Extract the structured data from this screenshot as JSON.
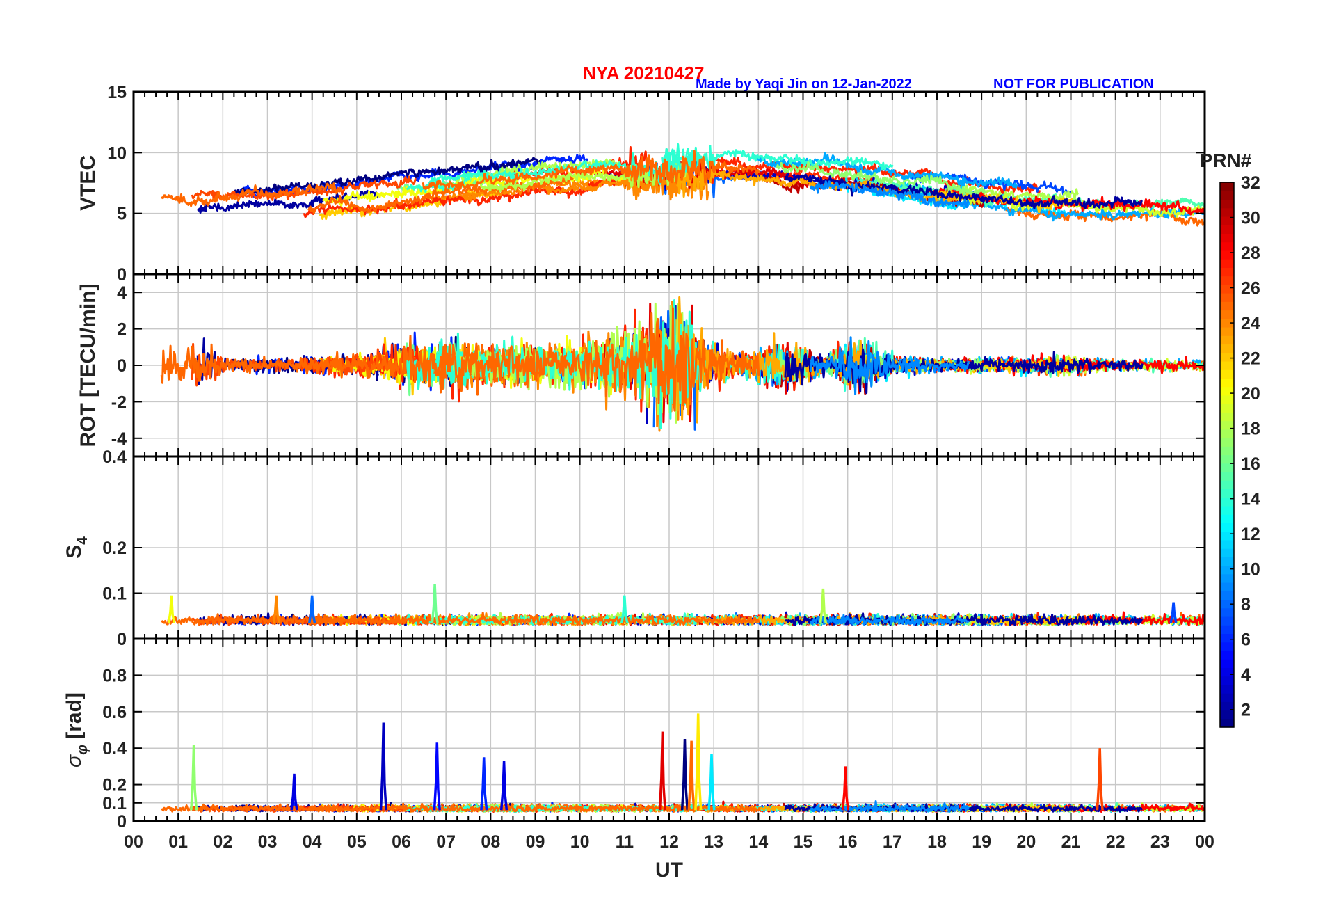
{
  "header": {
    "title": "NYA   20210427",
    "credit": "Made by Yaqi Jin on 12-Jan-2022",
    "note": "NOT FOR PUBLICATION"
  },
  "colors": {
    "title": "#ff0000",
    "credit": "#0000ff",
    "axes": "#000000",
    "grid": "#c8c8c8"
  },
  "chart_data": {
    "type": "line",
    "x_axis": {
      "label": "UT",
      "range": [
        0,
        24
      ],
      "ticks": [
        0,
        1,
        2,
        3,
        4,
        5,
        6,
        7,
        8,
        9,
        10,
        11,
        12,
        13,
        14,
        15,
        16,
        17,
        18,
        19,
        20,
        21,
        22,
        23,
        24
      ],
      "tick_labels": [
        "00",
        "01",
        "02",
        "03",
        "04",
        "05",
        "06",
        "07",
        "08",
        "09",
        "10",
        "11",
        "12",
        "13",
        "14",
        "15",
        "16",
        "17",
        "18",
        "19",
        "20",
        "21",
        "22",
        "23",
        "00"
      ]
    },
    "grid": true,
    "colorbar": {
      "label": "PRN#",
      "range": [
        1,
        32
      ],
      "ticks": [
        2,
        4,
        6,
        8,
        10,
        12,
        14,
        16,
        18,
        20,
        22,
        24,
        26,
        28,
        30,
        32
      ],
      "colormap": "jet",
      "placement": "right"
    },
    "panels": [
      {
        "id": "vtec",
        "ylabel": "VTEC",
        "ylim": [
          0,
          15
        ],
        "yticks": [
          0,
          5,
          10,
          15
        ],
        "baseline_profile": [
          [
            0,
            5.7
          ],
          [
            2,
            5.5
          ],
          [
            4,
            6.0
          ],
          [
            6,
            6.8
          ],
          [
            8,
            7.6
          ],
          [
            10,
            8.3
          ],
          [
            12,
            8.6
          ],
          [
            14,
            8.4
          ],
          [
            16,
            7.9
          ],
          [
            18,
            6.9
          ],
          [
            20,
            6.2
          ],
          [
            22,
            6.0
          ],
          [
            24,
            5.8
          ]
        ]
      },
      {
        "id": "rot",
        "ylabel": "ROT [TECU/min]",
        "ylim": [
          -5,
          5
        ],
        "yticks": [
          -4,
          -2,
          0,
          2,
          4
        ],
        "activity_profile": [
          [
            0,
            0.3
          ],
          [
            1.3,
            1.6
          ],
          [
            2,
            0.4
          ],
          [
            3.5,
            0.4
          ],
          [
            5,
            0.6
          ],
          [
            6.5,
            1.4
          ],
          [
            8,
            1.0
          ],
          [
            10,
            1.2
          ],
          [
            11.5,
            2.2
          ],
          [
            12.2,
            3.6
          ],
          [
            12.8,
            1.5
          ],
          [
            13.5,
            0.6
          ],
          [
            14.5,
            1.3
          ],
          [
            15.5,
            0.5
          ],
          [
            16.2,
            1.5
          ],
          [
            17,
            0.5
          ],
          [
            18,
            0.3
          ],
          [
            21,
            0.5
          ],
          [
            22,
            0.3
          ],
          [
            24,
            0.3
          ]
        ]
      },
      {
        "id": "s4",
        "ylabel": "S4",
        "ylim": [
          0,
          0.4
        ],
        "yticks": [
          0,
          0.1,
          0.2,
          0.4
        ],
        "baseline": 0.035,
        "spikes": [
          [
            0.85,
            0.095
          ],
          [
            3.2,
            0.095
          ],
          [
            4.0,
            0.095
          ],
          [
            6.75,
            0.12
          ],
          [
            11.0,
            0.095
          ],
          [
            15.45,
            0.11
          ],
          [
            23.3,
            0.08
          ]
        ]
      },
      {
        "id": "sigma_phi",
        "ylabel": "σ_φ [rad]",
        "ylim": [
          0,
          1
        ],
        "yticks": [
          0,
          0.1,
          0.2,
          0.4,
          0.6,
          0.8
        ],
        "baseline": 0.06,
        "spikes": [
          [
            1.35,
            0.42
          ],
          [
            3.6,
            0.26
          ],
          [
            5.6,
            0.54
          ],
          [
            6.8,
            0.43
          ],
          [
            7.85,
            0.35
          ],
          [
            8.3,
            0.33
          ],
          [
            11.85,
            0.49
          ],
          [
            12.35,
            0.45
          ],
          [
            12.5,
            0.44
          ],
          [
            12.65,
            0.59
          ],
          [
            12.95,
            0.37
          ],
          [
            15.95,
            0.3
          ],
          [
            21.65,
            0.4
          ]
        ]
      }
    ]
  }
}
